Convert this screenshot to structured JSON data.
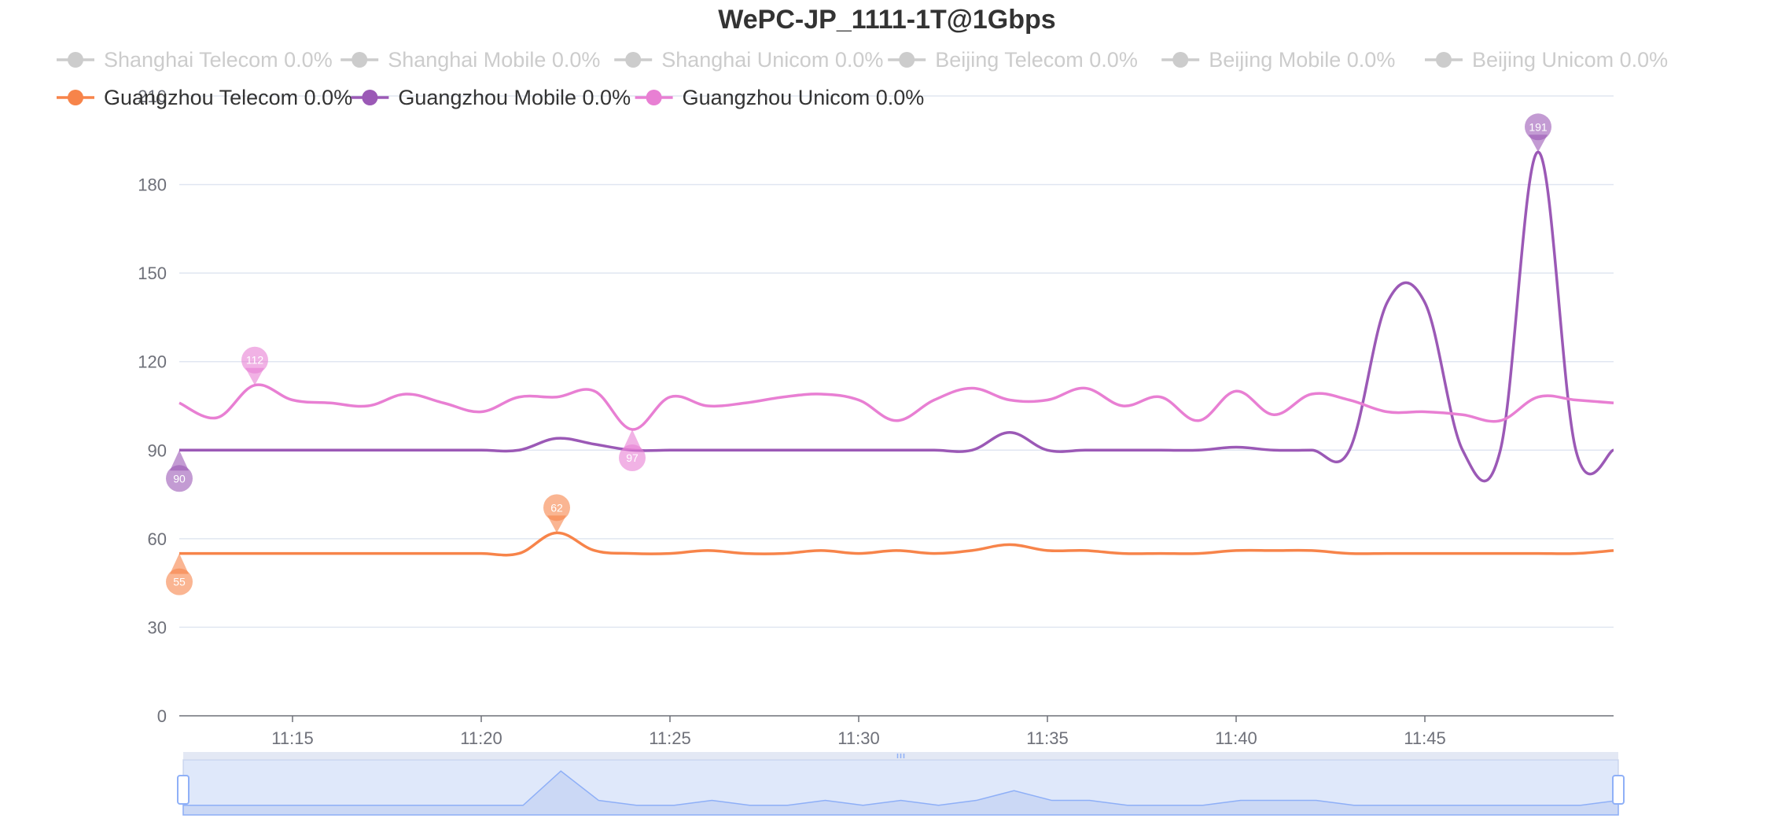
{
  "chart_data": {
    "type": "line",
    "title": "WePC-JP_1111-1T@1Gbps",
    "xlabel": "",
    "ylabel": "",
    "ylim": [
      0,
      210
    ],
    "yticks": [
      0,
      30,
      60,
      90,
      120,
      150,
      180,
      210
    ],
    "x_start": "11:12",
    "x_end": "11:50",
    "xticks": [
      "11:15",
      "11:20",
      "11:25",
      "11:30",
      "11:35",
      "11:40",
      "11:45"
    ],
    "grid": true,
    "legend_position": "top-left",
    "legend": [
      {
        "name": "Shanghai Telecom 0.0%",
        "active": false
      },
      {
        "name": "Shanghai Mobile 0.0%",
        "active": false
      },
      {
        "name": "Shanghai Unicom 0.0%",
        "active": false
      },
      {
        "name": "Beijing Telecom 0.0%",
        "active": false
      },
      {
        "name": "Beijing Mobile 0.0%",
        "active": false
      },
      {
        "name": "Beijing Unicom 0.0%",
        "active": false
      },
      {
        "name": "Guangzhou Telecom 0.0%",
        "active": true,
        "color": "#f7844a"
      },
      {
        "name": "Guangzhou Mobile 0.0%",
        "active": true,
        "color": "#9b59b6"
      },
      {
        "name": "Guangzhou Unicom 0.0%",
        "active": true,
        "color": "#e87fd3"
      }
    ],
    "inactive_color": "#cccccc",
    "series": [
      {
        "name": "Guangzhou Telecom 0.0%",
        "color": "#f7844a",
        "x": [
          "11:12",
          "11:13",
          "11:14",
          "11:15",
          "11:16",
          "11:17",
          "11:18",
          "11:19",
          "11:20",
          "11:21",
          "11:22",
          "11:23",
          "11:24",
          "11:25",
          "11:26",
          "11:27",
          "11:28",
          "11:29",
          "11:30",
          "11:31",
          "11:32",
          "11:33",
          "11:34",
          "11:35",
          "11:36",
          "11:37",
          "11:38",
          "11:39",
          "11:40",
          "11:41",
          "11:42",
          "11:43",
          "11:44",
          "11:45",
          "11:46",
          "11:47",
          "11:48",
          "11:49",
          "11:50"
        ],
        "values": [
          55,
          55,
          55,
          55,
          55,
          55,
          55,
          55,
          55,
          55,
          62,
          56,
          55,
          55,
          56,
          55,
          55,
          56,
          55,
          56,
          55,
          56,
          58,
          56,
          56,
          55,
          55,
          55,
          56,
          56,
          56,
          55,
          55,
          55,
          55,
          55,
          55,
          55,
          56
        ],
        "markers": [
          {
            "label": "55",
            "kind": "min",
            "x": "11:12",
            "value": 55
          },
          {
            "label": "62",
            "kind": "max",
            "x": "11:22",
            "value": 62
          }
        ]
      },
      {
        "name": "Guangzhou Mobile 0.0%",
        "color": "#9b59b6",
        "x": [
          "11:12",
          "11:13",
          "11:14",
          "11:15",
          "11:16",
          "11:17",
          "11:18",
          "11:19",
          "11:20",
          "11:21",
          "11:22",
          "11:23",
          "11:24",
          "11:25",
          "11:26",
          "11:27",
          "11:28",
          "11:29",
          "11:30",
          "11:31",
          "11:32",
          "11:33",
          "11:34",
          "11:35",
          "11:36",
          "11:37",
          "11:38",
          "11:39",
          "11:40",
          "11:41",
          "11:42",
          "11:43",
          "11:44",
          "11:45",
          "11:46",
          "11:47",
          "11:48",
          "11:49",
          "11:50"
        ],
        "values": [
          90,
          90,
          90,
          90,
          90,
          90,
          90,
          90,
          90,
          90,
          94,
          92,
          90,
          90,
          90,
          90,
          90,
          90,
          90,
          90,
          90,
          90,
          96,
          90,
          90,
          90,
          90,
          90,
          91,
          90,
          90,
          90,
          140,
          140,
          90,
          90,
          191,
          90,
          90
        ],
        "markers": [
          {
            "label": "90",
            "kind": "min",
            "x": "11:12",
            "value": 90
          },
          {
            "label": "191",
            "kind": "max",
            "x": "11:48",
            "value": 191
          }
        ]
      },
      {
        "name": "Guangzhou Unicom 0.0%",
        "color": "#e87fd3",
        "x": [
          "11:12",
          "11:13",
          "11:14",
          "11:15",
          "11:16",
          "11:17",
          "11:18",
          "11:19",
          "11:20",
          "11:21",
          "11:22",
          "11:23",
          "11:24",
          "11:25",
          "11:26",
          "11:27",
          "11:28",
          "11:29",
          "11:30",
          "11:31",
          "11:32",
          "11:33",
          "11:34",
          "11:35",
          "11:36",
          "11:37",
          "11:38",
          "11:39",
          "11:40",
          "11:41",
          "11:42",
          "11:43",
          "11:44",
          "11:45",
          "11:46",
          "11:47",
          "11:48",
          "11:49",
          "11:50"
        ],
        "values": [
          106,
          101,
          112,
          107,
          106,
          105,
          109,
          106,
          103,
          108,
          108,
          110,
          97,
          108,
          105,
          106,
          108,
          109,
          107,
          100,
          107,
          111,
          107,
          107,
          111,
          105,
          108,
          100,
          110,
          102,
          109,
          107,
          103,
          103,
          102,
          100,
          108,
          107,
          106
        ],
        "markers": [
          {
            "label": "112",
            "kind": "max",
            "x": "11:14",
            "value": 112
          },
          {
            "label": "97",
            "kind": "min",
            "x": "11:24",
            "value": 97
          }
        ]
      }
    ],
    "zoom_slider": {
      "start": 0,
      "end": 100,
      "fill_color": "#d6e0f5",
      "line_color": "#8fb0f7"
    }
  }
}
